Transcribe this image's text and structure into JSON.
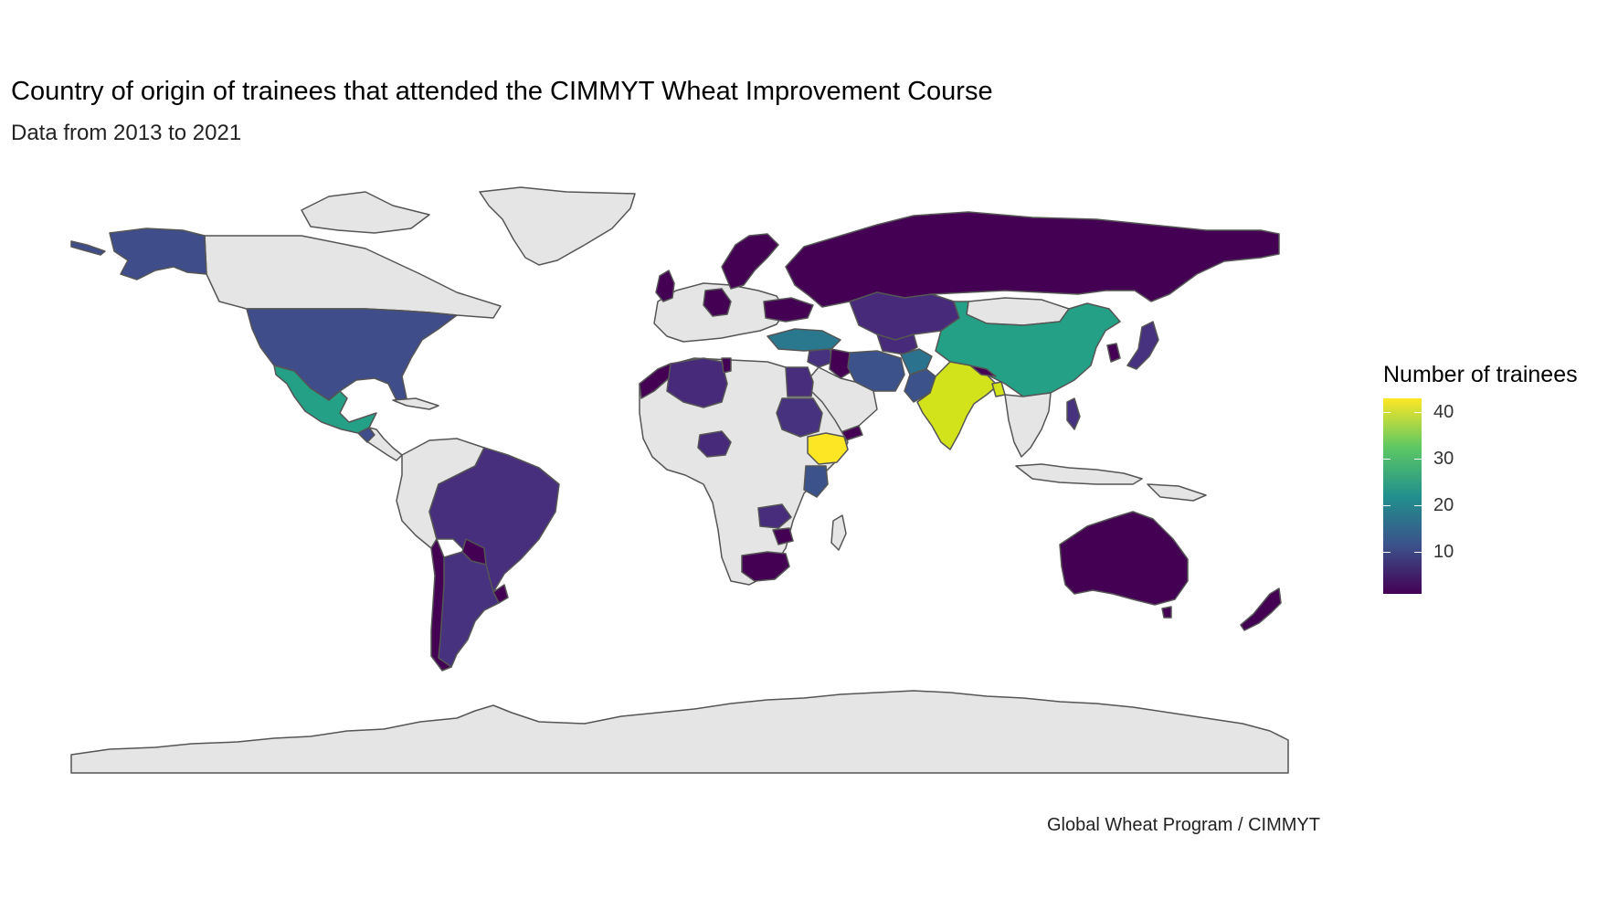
{
  "title": "Country of origin of trainees that attended the CIMMYT Wheat Improvement Course",
  "subtitle": "Data from 2013 to 2021",
  "caption": "Global Wheat Program / CIMMYT",
  "legend": {
    "title": "Number of trainees",
    "ticks": [
      "10",
      "20",
      "30",
      "40"
    ],
    "tick_values": [
      10,
      20,
      30,
      40
    ],
    "min": 1,
    "max": 43,
    "palette": [
      "#440154",
      "#3b528b",
      "#21908d",
      "#5dc863",
      "#fde725"
    ]
  },
  "colors": {
    "no_data_fill": "#e5e5e5",
    "border": "#555555",
    "background": "#ffffff"
  },
  "chart_data": {
    "type": "choropleth",
    "value_label": "Number of trainees",
    "regions": [
      {
        "name": "Ethiopia",
        "value": 43
      },
      {
        "name": "India",
        "value": 40
      },
      {
        "name": "China",
        "value": 24
      },
      {
        "name": "Mexico",
        "value": 22
      },
      {
        "name": "Turkey",
        "value": 17
      },
      {
        "name": "Afghanistan",
        "value": 16
      },
      {
        "name": "Iran",
        "value": 12
      },
      {
        "name": "United States",
        "value": 10
      },
      {
        "name": "Alaska",
        "value": 10
      },
      {
        "name": "Kenya",
        "value": 9
      },
      {
        "name": "Sudan",
        "value": 6
      },
      {
        "name": "Egypt",
        "value": 7
      },
      {
        "name": "Kazakhstan",
        "value": 5
      },
      {
        "name": "Brazil",
        "value": 5
      },
      {
        "name": "Algeria",
        "value": 4
      },
      {
        "name": "Nigeria",
        "value": 4
      },
      {
        "name": "Zambia",
        "value": 5
      },
      {
        "name": "Uzbekistan",
        "value": 4
      },
      {
        "name": "Pakistan",
        "value": 3
      },
      {
        "name": "Russia",
        "value": 2
      },
      {
        "name": "Argentina",
        "value": 2
      },
      {
        "name": "Australia",
        "value": 2
      },
      {
        "name": "South Africa",
        "value": 2
      },
      {
        "name": "Zimbabwe",
        "value": 2
      },
      {
        "name": "Morocco",
        "value": 3
      },
      {
        "name": "Tunisia",
        "value": 2
      },
      {
        "name": "Japan",
        "value": 3
      },
      {
        "name": "Philippines",
        "value": 3
      },
      {
        "name": "Nepal",
        "value": 2
      },
      {
        "name": "Bangladesh",
        "value": 2
      },
      {
        "name": "Paraguay",
        "value": 1
      },
      {
        "name": "Uruguay",
        "value": 1
      },
      {
        "name": "Chile",
        "value": 1
      },
      {
        "name": "New Zealand",
        "value": 1
      },
      {
        "name": "Korea",
        "value": 1
      },
      {
        "name": "Ukraine",
        "value": 1
      },
      {
        "name": "Scandinavia",
        "value": 1
      },
      {
        "name": "United Kingdom",
        "value": 1
      },
      {
        "name": "Germany",
        "value": 1
      },
      {
        "name": "Iraq",
        "value": 1
      },
      {
        "name": "Syria",
        "value": 2
      },
      {
        "name": "Yemen",
        "value": 1
      }
    ]
  }
}
